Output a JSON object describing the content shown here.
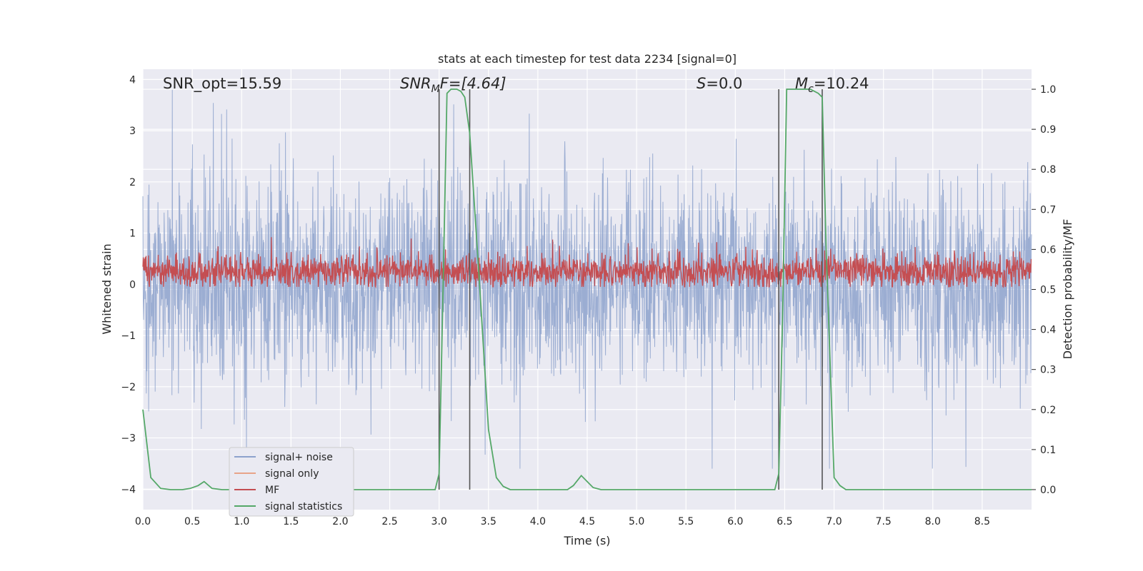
{
  "chart_data": {
    "type": "line",
    "title": "stats at each timestep for test data 2234 [signal=0]",
    "xlabel": "Time (s)",
    "ylabel": "Whitened strain",
    "y2label": "Detection probability/MF",
    "xlim": [
      0.0,
      9.0
    ],
    "ylim": [
      -4.4,
      4.2
    ],
    "y2lim": [
      -0.05,
      1.05
    ],
    "x_ticks": [
      "0.0",
      "0.5",
      "1.0",
      "1.5",
      "2.0",
      "2.5",
      "3.0",
      "3.5",
      "4.0",
      "4.5",
      "5.0",
      "5.5",
      "6.0",
      "6.5",
      "7.0",
      "7.5",
      "8.0",
      "8.5"
    ],
    "y_ticks": [
      "4",
      "3",
      "2",
      "1",
      "0",
      "−1",
      "−2",
      "−3",
      "−4"
    ],
    "y2_ticks": [
      "1.0",
      "0.9",
      "0.8",
      "0.7",
      "0.6",
      "0.5",
      "0.4",
      "0.3",
      "0.2",
      "0.1",
      "0.0"
    ],
    "grid": true,
    "legend_position": "lower-left",
    "annotations": {
      "snr_opt": "SNR_opt=15.59",
      "snr_mf_symbol": "SNR",
      "snr_mf_sub": "M",
      "snr_mf_rest": "F=[4.64]",
      "s_symbol": "S",
      "s_value": "=0.0",
      "mc_symbol": "M",
      "mc_sub": "c",
      "mc_value": "=10.24"
    },
    "vertical_markers_x": [
      3.0,
      3.31,
      6.44,
      6.88
    ],
    "series": [
      {
        "name": "signal+ noise",
        "color": "#8da2cc",
        "description_range": [
          -3.6,
          3.8
        ],
        "note_values": "dense noise band roughly between -2.0 and 2.2 with spikes"
      },
      {
        "name": "signal only",
        "color": "#e8a488"
      },
      {
        "name": "MF",
        "color": "#c44e52"
      },
      {
        "name": "signal statistics",
        "color": "#55a868",
        "x": [
          0.0,
          0.08,
          0.18,
          0.28,
          0.4,
          0.48,
          0.56,
          0.62,
          0.7,
          0.8,
          0.9,
          1.0,
          1.5,
          2.0,
          2.5,
          2.96,
          3.0,
          3.04,
          3.08,
          3.12,
          3.18,
          3.22,
          3.26,
          3.31,
          3.4,
          3.5,
          3.58,
          3.65,
          3.72,
          3.8,
          4.0,
          4.2,
          4.3,
          4.36,
          4.44,
          4.5,
          4.56,
          4.64,
          4.8,
          5.0,
          5.5,
          6.0,
          6.3,
          6.4,
          6.44,
          6.48,
          6.52,
          6.58,
          6.68,
          6.76,
          6.84,
          6.88,
          6.92,
          7.0,
          7.06,
          7.12,
          7.3,
          8.0,
          8.5,
          9.0
        ],
        "y": [
          0.2,
          0.03,
          0.003,
          0.0,
          0.0,
          0.003,
          0.01,
          0.02,
          0.003,
          0.0,
          0.0,
          0.0,
          0.0,
          0.0,
          0.0,
          0.0,
          0.04,
          0.5,
          0.99,
          1.0,
          1.0,
          0.995,
          0.98,
          0.89,
          0.55,
          0.15,
          0.03,
          0.008,
          0.0,
          0.0,
          0.0,
          0.0,
          0.0,
          0.01,
          0.035,
          0.02,
          0.005,
          0.0,
          0.0,
          0.0,
          0.0,
          0.0,
          0.0,
          0.0,
          0.04,
          0.45,
          1.0,
          1.0,
          1.0,
          1.0,
          0.99,
          0.98,
          0.6,
          0.03,
          0.01,
          0.0,
          0.0,
          0.0,
          0.0,
          0.0
        ]
      }
    ]
  }
}
